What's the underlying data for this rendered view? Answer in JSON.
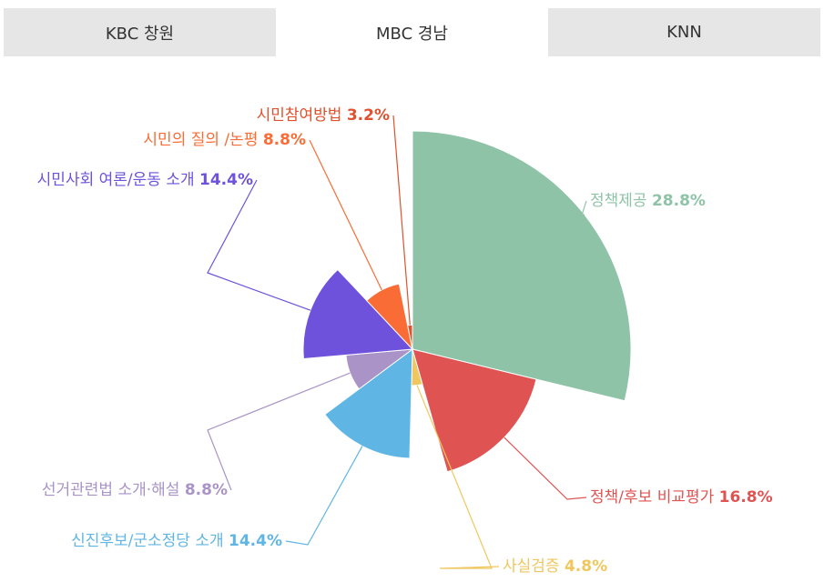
{
  "tabs": [
    {
      "label": "KBC 창원",
      "active": false
    },
    {
      "label": "MBC 경남",
      "active": true
    },
    {
      "label": "KNN",
      "active": false
    }
  ],
  "chart_data": {
    "type": "pie",
    "variant": "variable-radius (radius proportional to value)",
    "slices": [
      {
        "label": "정책제공",
        "value": 28.8,
        "value_label": "28.8%",
        "color": "#8fc3a7"
      },
      {
        "label": "정책/후보 비교평가",
        "value": 16.8,
        "value_label": "16.8%",
        "color": "#df5353"
      },
      {
        "label": "사실검증",
        "value": 4.8,
        "value_label": "4.8%",
        "color": "#f0c75e"
      },
      {
        "label": "신진후보/군소정당 소개",
        "value": 14.4,
        "value_label": "14.4%",
        "color": "#5fb6e4"
      },
      {
        "label": "선거관련법 소개·해설",
        "value": 8.8,
        "value_label": "8.8%",
        "color": "#a993c7"
      },
      {
        "label": "시민사회 여론/운동 소개",
        "value": 14.4,
        "value_label": "14.4%",
        "color": "#6e52db"
      },
      {
        "label": "시민의 질의 /논평",
        "value": 8.8,
        "value_label": "8.8%",
        "color": "#f96c35"
      },
      {
        "label": "시민참여방법",
        "value": 3.2,
        "value_label": "3.2%",
        "color": "#e0512d"
      }
    ]
  }
}
